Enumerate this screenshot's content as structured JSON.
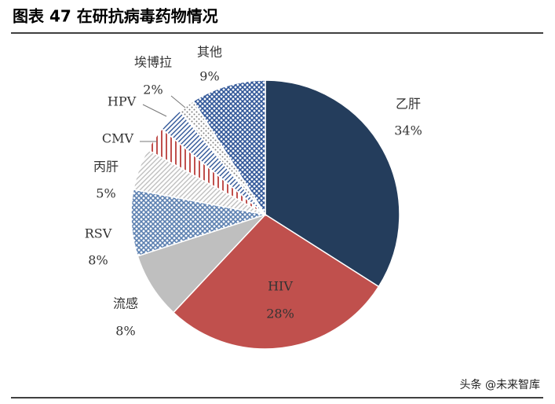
{
  "chart_data": {
    "type": "pie",
    "title": "图表 47 在研抗病毒药物情况",
    "categories": [
      "乙肝",
      "HIV",
      "流感",
      "RSV",
      "丙肝",
      "CMV",
      "HPV",
      "埃博拉",
      "其他"
    ],
    "values": [
      34,
      28,
      8,
      8,
      5,
      3,
      3,
      2,
      9
    ],
    "value_labels": [
      "34%",
      "28%",
      "8%",
      "8%",
      "5%",
      null,
      null,
      "2%",
      "9%"
    ],
    "colors": [
      "#243d5c",
      "#c0504d",
      "#bfbfbf",
      "#5b7fb0",
      "#bfbfbf",
      "#c0504d",
      "#2f5597",
      "#7f7f7f",
      "#2f5597"
    ],
    "fills": [
      "solid",
      "solid",
      "solid",
      "crosshatch",
      "diagonal",
      "vertical",
      "diagonal",
      "dots",
      "crosshatch"
    ],
    "watermark": "头条 @未来智库"
  }
}
